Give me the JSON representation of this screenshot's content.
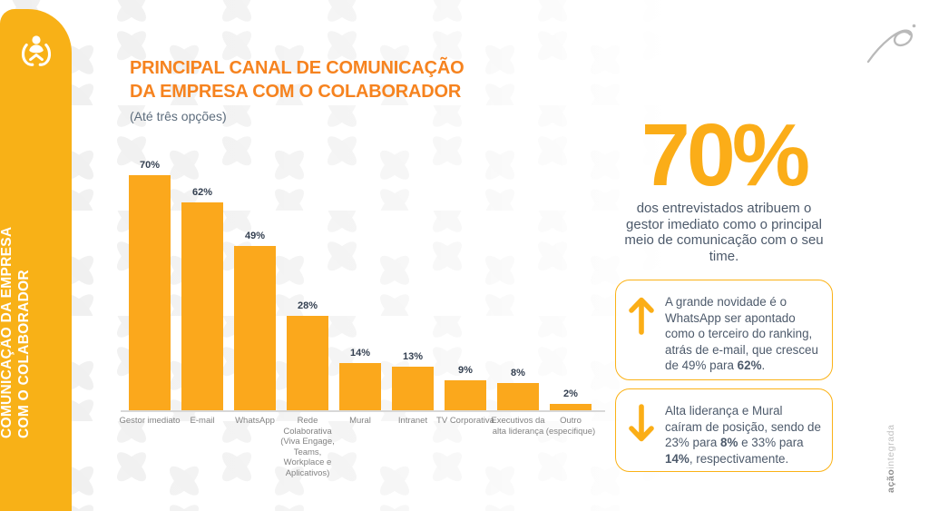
{
  "slide": {
    "sidebar": {
      "icon": "hands-holding-person-icon",
      "label_line1": "COMUNICAÇÃO DA EMPRESA",
      "label_line2": "COM O COLABORADOR"
    },
    "header": {
      "title_line1": "PRINCIPAL CANAL DE COMUNICAÇÃO",
      "title_line2": "DA EMPRESA COM O COLABORADOR",
      "subtitle": "(Até três opções)"
    },
    "highlight": {
      "value": "70%",
      "description_lines": [
        "dos entrevistados atribuem o",
        "gestor imediato como o principal",
        "meio de comunicação com o seu",
        "time."
      ]
    },
    "callouts": [
      {
        "icon": "arrow-up-icon",
        "segments": [
          {
            "text": "A grande novidade é o WhatsApp ser apontado como o terceiro do ranking, atrás de e-mail, que cresceu de 49% para ",
            "bold": false
          },
          {
            "text": "62%",
            "bold": true
          },
          {
            "text": ".",
            "bold": false
          }
        ]
      },
      {
        "icon": "arrow-down-icon",
        "segments": [
          {
            "text": "Alta liderança e Mural caíram de posição, sendo de 23% para ",
            "bold": false
          },
          {
            "text": "8%",
            "bold": true
          },
          {
            "text": " e 33% para ",
            "bold": false
          },
          {
            "text": "14%",
            "bold": true
          },
          {
            "text": ", respectivamente.",
            "bold": false
          }
        ]
      }
    ],
    "brand": {
      "logo": "swoosh-logo",
      "watermark_bold": "ação",
      "watermark_light": "integrada"
    }
  },
  "chart_data": {
    "type": "bar",
    "title": "Principal canal de comunicação da empresa com o colaborador",
    "subtitle": "(Até três opções)",
    "categories": [
      "Gestor imediato",
      "E-mail",
      "WhatsApp",
      "Rede Colaborativa (Viva Engage, Teams, Workplace e Aplicativos)",
      "Mural",
      "Intranet",
      "TV Corporativa",
      "Executivos da alta liderança",
      "Outro (especifique)"
    ],
    "category_lines": [
      [
        "Gestor imediato"
      ],
      [
        "E-mail"
      ],
      [
        "WhatsApp"
      ],
      [
        "Rede",
        "Colaborativa",
        "(Viva Engage,",
        "Teams,",
        "Workplace e",
        "Aplicativos)"
      ],
      [
        "Mural"
      ],
      [
        "Intranet"
      ],
      [
        "TV Corporativa"
      ],
      [
        "Executivos da",
        "alta liderança"
      ],
      [
        "Outro",
        "(especifique)"
      ]
    ],
    "values": [
      70,
      62,
      49,
      28,
      14,
      13,
      9,
      8,
      2
    ],
    "value_suffix": "%",
    "ylim": [
      0,
      77
    ],
    "grid": false,
    "legend": false,
    "bar_color": "#FBA81C",
    "value_label_color": "#333F50"
  },
  "colors": {
    "sidebar_yellow": "#F8B117",
    "title_orange": "#F6831F",
    "accent_yellow": "#FBB216",
    "big_stat_yellow": "#FBAD18",
    "text_slate": "#4D5A6B",
    "category_gray": "#828282",
    "axis_gray": "#D8D8D8",
    "watermark_gray": "#8F8F8F",
    "logo_gray": "#B9B9B9"
  }
}
